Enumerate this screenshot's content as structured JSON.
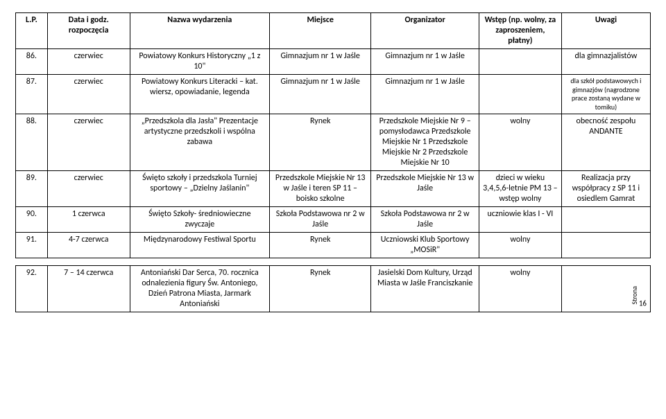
{
  "header": {
    "c1": "L.P.",
    "c2": "Data i godz. rozpoczęcia",
    "c3": "Nazwa wydarzenia",
    "c4": "Miejsce",
    "c5": "Organizator",
    "c6": "Wstęp (np. wolny, za zaproszeniem, płatny)",
    "c7": "Uwagi"
  },
  "rows": [
    {
      "lp": "86.",
      "date": "czerwiec",
      "name": "Powiatowy Konkurs Historyczny „1 z 10\"",
      "place": "Gimnazjum nr 1 w Jaśle",
      "org": "Gimnazjum nr 1 w Jaśle",
      "entry": "",
      "notes": "dla gimnazjalistów",
      "notes_small": false
    },
    {
      "lp": "87.",
      "date": "czerwiec",
      "name": "Powiatowy Konkurs Literacki – kat. wiersz, opowiadanie, legenda",
      "place": "Gimnazjum nr 1 w Jaśle",
      "org": "Gimnazjum nr 1 w Jaśle",
      "entry": "",
      "notes": "dla szkół podstawowych i gimnazjów (nagrodzone prace zostaną wydane w tomiku)",
      "notes_small": true
    },
    {
      "lp": "88.",
      "date": "czerwiec",
      "name": "„Przedszkola dla Jasła\" Prezentacje artystyczne przedszkoli i wspólna zabawa",
      "place": "Rynek",
      "org": "Przedszkole Miejskie Nr 9 – pomysłodawca Przedszkole Miejskie Nr 1 Przedszkole Miejskie Nr 2 Przedszkole Miejskie Nr 10",
      "entry": "wolny",
      "notes": "obecność zespołu ANDANTE",
      "notes_small": false
    },
    {
      "lp": "89.",
      "date": "czerwiec",
      "name": "Święto szkoły i przedszkola Turniej sportowy – „Dzielny Jaślanin\"",
      "place": "Przedszkole Miejskie Nr 13 w Jaśle i teren SP 11 – boisko szkolne",
      "org": "Przedszkole Miejskie Nr 13 w Jaśle",
      "entry": "dzieci w wieku 3,4,5,6-letnie  PM 13 – wstęp wolny",
      "notes": "Realizacja przy współpracy z SP 11 i osiedlem Gamrat",
      "notes_small": false
    },
    {
      "lp": "90.",
      "date": "1 czerwca",
      "name": "Święto Szkoły- średniowieczne zwyczaje",
      "place": "Szkoła Podstawowa nr 2 w Jaśle",
      "org": "Szkoła Podstawowa nr 2 w Jaśle",
      "entry": "uczniowie klas I - VI",
      "notes": "",
      "notes_small": false
    },
    {
      "lp": "91.",
      "date": "4-7 czerwca",
      "name": "Międzynarodowy Festiwal Sportu",
      "place": "Rynek",
      "org": "Uczniowski Klub Sportowy „MOSiR\"",
      "entry": "wolny",
      "notes": "",
      "notes_small": false
    }
  ],
  "rows2": [
    {
      "lp": "92.",
      "date": "7 – 14 czerwca",
      "name": "Antoniański  Dar Serca, 70. rocznica odnalezienia figury Św. Antoniego, Dzień Patrona Miasta, Jarmark Antoniański",
      "place": "Rynek",
      "org": "Jasielski Dom Kultury, Urząd Miasta w Jaśle Franciszkanie",
      "entry": "wolny",
      "notes": ""
    }
  ],
  "page_label": "Strona",
  "page_number": "16"
}
